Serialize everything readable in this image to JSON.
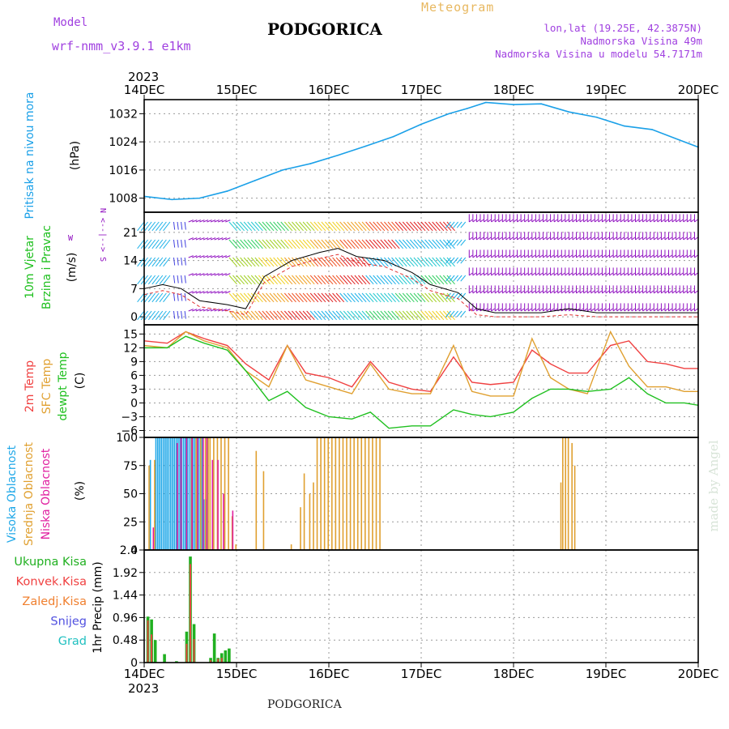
{
  "header": {
    "model_label": "Model",
    "model_name": "wrf-nmm_v3.9.1  e1km",
    "title": "PODGORICA",
    "meteogram_label": "Meteogram",
    "lonlat": "lon,lat (19.25E, 42.3875N)",
    "elevation": "Nadmorska Visina 49m",
    "model_elevation": "Nadmorska Visina u modelu 54.7171m"
  },
  "footer": {
    "station": "PODGORICA",
    "watermark": "made by Angel"
  },
  "colors": {
    "pressure": "#1aa0e8",
    "temp2m": "#f04040",
    "sfc_temp": "#e0a030",
    "dewpt": "#20c020",
    "cloud_high": "#20a8e8",
    "cloud_mid": "#e0a030",
    "cloud_low": "#e020a0",
    "precip_total": "#20b020",
    "precip_conv": "#f04040",
    "precip_frozen": "#f08030",
    "snow": "#5050e0",
    "hail": "#20c0c0",
    "wind_purple": "#9010c0"
  },
  "chart_data": [
    {
      "type": "line",
      "panel": "pressure",
      "labels": [
        "Pritisak na nivou mora",
        "(hPa)"
      ],
      "ylim": [
        1004,
        1036
      ],
      "yticks": [
        1008,
        1016,
        1024,
        1032
      ],
      "x_top_year": "2023",
      "x_ticks": [
        "14DEC",
        "15DEC",
        "16DEC",
        "17DEC",
        "18DEC",
        "19DEC",
        "20DEC"
      ],
      "x": [
        0,
        0.3,
        0.6,
        0.9,
        1.2,
        1.5,
        1.8,
        2.1,
        2.4,
        2.7,
        3.0,
        3.3,
        3.5,
        3.7,
        4.0,
        4.3,
        4.6,
        4.9,
        5.2,
        5.5,
        5.8,
        6.0
      ],
      "values": [
        1008.5,
        1007.6,
        1008.0,
        1010.0,
        1013.0,
        1016.0,
        1017.8,
        1020.2,
        1022.8,
        1025.5,
        1029.0,
        1032.0,
        1033.5,
        1035.2,
        1034.6,
        1034.8,
        1032.5,
        1031.0,
        1028.5,
        1027.5,
        1024.5,
        1022.5
      ]
    },
    {
      "type": "line",
      "panel": "wind",
      "labels": [
        "10m Vjetar",
        "Brzina i Pravac",
        "(m/s)"
      ],
      "ylim": [
        -2,
        26
      ],
      "yticks": [
        0,
        7,
        14,
        21
      ],
      "compass": [
        "N",
        "W",
        "S"
      ],
      "x": [
        0,
        0.2,
        0.4,
        0.6,
        0.9,
        1.1,
        1.3,
        1.6,
        1.9,
        2.1,
        2.3,
        2.6,
        2.9,
        3.1,
        3.4,
        3.6,
        3.8,
        4.0,
        4.3,
        4.6,
        4.9,
        5.2,
        5.5,
        5.8,
        6.0
      ],
      "values": [
        7,
        8,
        7,
        4,
        3,
        2,
        10,
        14,
        16,
        17,
        15,
        14,
        11,
        8,
        6,
        2,
        1,
        1,
        1,
        2,
        1,
        1,
        1,
        1,
        1
      ]
    },
    {
      "type": "line",
      "panel": "temperature",
      "labels": [
        "2m Temp",
        "SFC Temp",
        "dewpt Temp",
        "(C)"
      ],
      "ylim": [
        -7.5,
        17
      ],
      "yticks": [
        -6,
        -3,
        0,
        3,
        6,
        9,
        12,
        15
      ],
      "x": [
        0,
        0.25,
        0.45,
        0.65,
        0.9,
        1.1,
        1.35,
        1.55,
        1.75,
        2.0,
        2.25,
        2.45,
        2.65,
        2.9,
        3.1,
        3.35,
        3.55,
        3.75,
        4.0,
        4.2,
        4.4,
        4.6,
        4.8,
        5.05,
        5.25,
        5.45,
        5.65,
        5.85,
        6.0
      ],
      "series": [
        {
          "name": "2m Temp",
          "values": [
            13.5,
            13.0,
            15.5,
            14.0,
            12.5,
            8.5,
            5.0,
            12.5,
            6.5,
            5.5,
            3.5,
            9.0,
            4.5,
            3.0,
            2.5,
            10.0,
            4.5,
            4.0,
            4.5,
            11.5,
            8.5,
            6.5,
            6.5,
            12.5,
            13.5,
            9.0,
            8.5,
            7.5,
            7.5
          ]
        },
        {
          "name": "SFC Temp",
          "values": [
            12.5,
            12.0,
            15.5,
            13.5,
            12.0,
            7.0,
            3.5,
            12.5,
            5.0,
            3.5,
            2.0,
            8.5,
            3.0,
            2.0,
            2.0,
            12.5,
            2.5,
            1.5,
            1.5,
            14.0,
            5.5,
            3.0,
            2.0,
            15.5,
            8.0,
            3.5,
            3.5,
            2.5,
            2.5
          ]
        },
        {
          "name": "dewpt Temp",
          "values": [
            12.0,
            12.0,
            14.5,
            13.0,
            11.5,
            7.0,
            0.5,
            2.5,
            -1.0,
            -3.0,
            -3.5,
            -2.0,
            -5.5,
            -5.0,
            -5.0,
            -1.5,
            -2.5,
            -3.0,
            -2.0,
            1.0,
            3.0,
            3.0,
            2.5,
            3.0,
            5.5,
            2.0,
            0.0,
            0.0,
            -0.5
          ]
        }
      ]
    },
    {
      "type": "bar",
      "panel": "clouds",
      "labels": [
        "Visoka Oblacnost",
        "Srednja Oblacnost",
        "Niska Oblacnost",
        "(%)"
      ],
      "ylim": [
        0,
        100
      ],
      "yticks": [
        0,
        25,
        50,
        75,
        100
      ],
      "series": [
        {
          "name": "Visoka Oblacnost",
          "x": [
            0.06,
            0.12,
            0.14,
            0.16,
            0.18,
            0.2,
            0.22,
            0.24,
            0.26,
            0.28,
            0.3,
            0.32,
            0.34,
            0.36,
            0.38,
            0.4,
            0.42,
            0.44,
            0.46,
            0.48,
            0.5,
            0.52,
            0.54,
            0.56,
            0.58,
            0.6,
            0.62,
            0.64,
            0.66,
            0.68
          ],
          "values": [
            80,
            100,
            100,
            100,
            100,
            100,
            100,
            100,
            100,
            100,
            100,
            100,
            100,
            100,
            100,
            100,
            100,
            100,
            100,
            100,
            100,
            100,
            100,
            100,
            100,
            100,
            100,
            45,
            45,
            100
          ]
        },
        {
          "name": "Srednja Oblacnost",
          "x": [
            0.04,
            0.1,
            0.5,
            0.55,
            0.6,
            0.65,
            0.68,
            0.7,
            0.74,
            0.78,
            0.82,
            0.86,
            0.9,
            0.94,
            0.98,
            1.2,
            1.28,
            1.58,
            1.68,
            1.72,
            1.78,
            1.82,
            1.86,
            1.9,
            1.94,
            1.98,
            2.02,
            2.06,
            2.1,
            2.14,
            2.18,
            2.22,
            2.26,
            2.3,
            2.34,
            2.38,
            2.42,
            2.46,
            2.5,
            2.54,
            4.5,
            4.52,
            4.55,
            4.58,
            4.62,
            4.65
          ],
          "values": [
            75,
            80,
            100,
            100,
            100,
            100,
            100,
            100,
            100,
            100,
            100,
            100,
            100,
            30,
            5,
            88,
            70,
            5,
            38,
            68,
            50,
            60,
            100,
            100,
            100,
            100,
            100,
            100,
            100,
            100,
            100,
            100,
            100,
            100,
            100,
            100,
            100,
            100,
            100,
            100,
            60,
            100,
            100,
            100,
            95,
            75
          ]
        },
        {
          "name": "Niska Oblacnost",
          "x": [
            0.08,
            0.34,
            0.38,
            0.44,
            0.5,
            0.56,
            0.62,
            0.66,
            0.72,
            0.78,
            0.84,
            0.94
          ],
          "values": [
            20,
            95,
            100,
            100,
            100,
            100,
            100,
            100,
            80,
            80,
            50,
            35
          ]
        }
      ]
    },
    {
      "type": "bar",
      "panel": "precipitation",
      "labels": [
        "Ukupna Kisa",
        "Konvek.Kisa",
        "Zaledj.Kisa",
        "Snijeg",
        "Grad",
        "1hr Precip (mm)"
      ],
      "ylim": [
        0,
        2.4
      ],
      "yticks": [
        0,
        0.48,
        0.96,
        1.44,
        1.92,
        2.4
      ],
      "x_bottom_year": "2023",
      "series": [
        {
          "name": "Ukupna Kisa",
          "x": [
            0.04,
            0.08,
            0.12,
            0.22,
            0.35,
            0.46,
            0.5,
            0.54,
            0.72,
            0.76,
            0.8,
            0.84,
            0.88,
            0.92
          ],
          "values": [
            0.98,
            0.92,
            0.48,
            0.18,
            0.03,
            0.66,
            2.26,
            0.82,
            0.1,
            0.62,
            0.1,
            0.2,
            0.26,
            0.3
          ]
        },
        {
          "name": "Konvek.Kisa",
          "x": [
            0.04,
            0.08,
            0.46,
            0.5,
            0.54,
            0.72,
            0.8,
            0.84
          ],
          "values": [
            0.9,
            0.6,
            0.4,
            2.1,
            0.5,
            0.05,
            0.08,
            0.1
          ]
        }
      ]
    }
  ]
}
